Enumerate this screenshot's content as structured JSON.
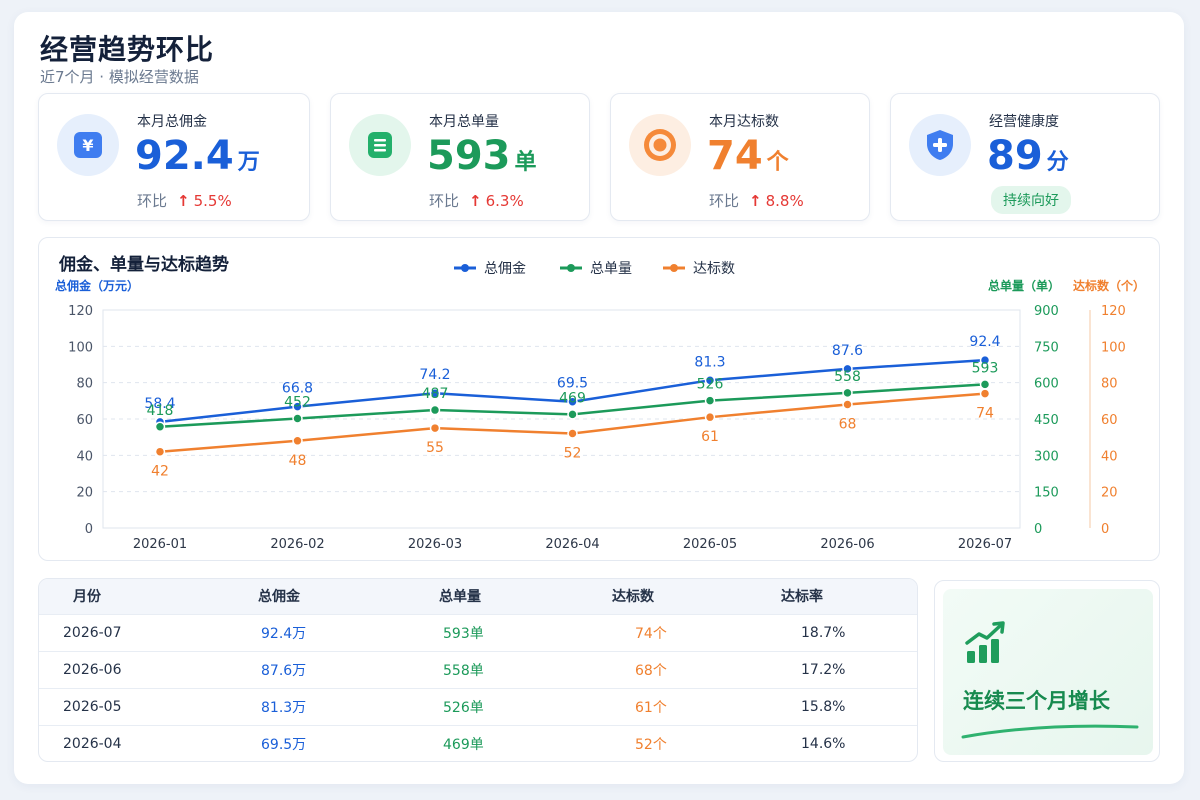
{
  "header": {
    "title": "经营趋势环比",
    "subtitle": "近7个月 · 模拟经营数据"
  },
  "kpis": [
    {
      "label": "本月总佣金",
      "value": "92.4",
      "unit": "万",
      "change_label": "环比",
      "change": "5.5%",
      "color": "#1a5fd8",
      "icon": "yen-wallet-icon"
    },
    {
      "label": "本月总单量",
      "value": "593",
      "unit": "单",
      "change_label": "环比",
      "change": "6.3%",
      "color": "#1c9a5a",
      "icon": "document-list-icon"
    },
    {
      "label": "本月达标数",
      "value": "74",
      "unit": "个",
      "change_label": "环比",
      "change": "8.8%",
      "color": "#f0802f",
      "icon": "target-icon"
    },
    {
      "label": "经营健康度",
      "value": "89",
      "unit": "分",
      "badge": "持续向好",
      "color": "#1a5fd8",
      "icon": "shield-plus-icon"
    }
  ],
  "chart_data": {
    "type": "line",
    "title": "佣金、单量与达标趋势",
    "x": [
      "2026-01",
      "2026-02",
      "2026-03",
      "2026-04",
      "2026-05",
      "2026-06",
      "2026-07"
    ],
    "axes": {
      "left": {
        "label": "总佣金（万元）",
        "ticks": [
          0,
          20,
          40,
          60,
          80,
          100,
          120
        ],
        "range": [
          0,
          120
        ],
        "color": "#1a5fd8"
      },
      "right1": {
        "label": "总单量（单）",
        "ticks": [
          0,
          150,
          300,
          450,
          600,
          750,
          900
        ],
        "range": [
          0,
          900
        ],
        "color": "#1c9a5a"
      },
      "right2": {
        "label": "达标数（个）",
        "ticks": [
          0,
          20,
          40,
          60,
          80,
          100,
          120
        ],
        "range": [
          0,
          120
        ],
        "color": "#f0802f"
      }
    },
    "series": [
      {
        "name": "总佣金",
        "axis": "left",
        "color": "#1a5fd8",
        "values": [
          58.4,
          66.8,
          74.2,
          69.5,
          81.3,
          87.6,
          92.4
        ]
      },
      {
        "name": "总单量",
        "axis": "right1",
        "color": "#1c9a5a",
        "values": [
          418,
          452,
          487,
          469,
          526,
          558,
          593
        ]
      },
      {
        "name": "达标数",
        "axis": "right2",
        "color": "#f0802f",
        "values": [
          42,
          48,
          55,
          52,
          61,
          68,
          74
        ]
      }
    ],
    "grid": true,
    "legend": "top-center"
  },
  "table": {
    "columns": [
      "月份",
      "总佣金",
      "总单量",
      "达标数",
      "达标率"
    ],
    "rows": [
      [
        "2026-07",
        "92.4万",
        "593单",
        "74个",
        "18.7%"
      ],
      [
        "2026-06",
        "87.6万",
        "558单",
        "68个",
        "17.2%"
      ],
      [
        "2026-05",
        "81.3万",
        "526单",
        "61个",
        "15.8%"
      ],
      [
        "2026-04",
        "69.5万",
        "469单",
        "52个",
        "14.6%"
      ]
    ]
  },
  "growth": {
    "text": "连续三个月增长",
    "icon": "bar-chart-growth-icon"
  }
}
